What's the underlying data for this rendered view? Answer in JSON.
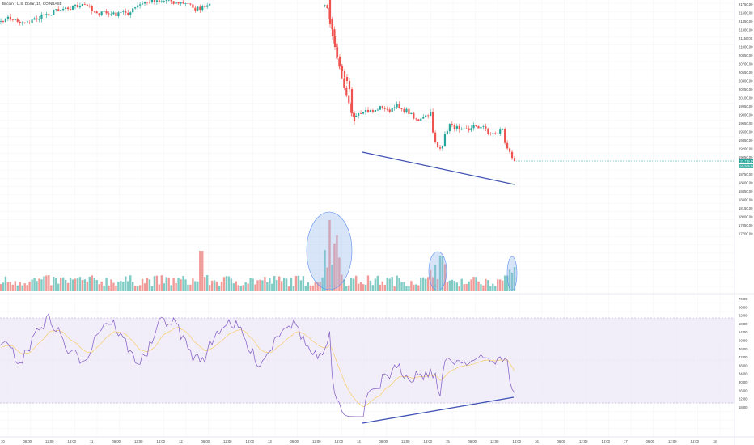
{
  "title": "Bitcoin / U.S. Dollar, 1h, COINBASE",
  "colors": {
    "up": "#26a69a",
    "down": "#ef5350",
    "vol_up": "#80cbc4",
    "vol_down": "#f19b99",
    "rsi_line": "#7e57c2",
    "rsi_ma": "#f9c74f",
    "rsi_band": "#ede7f6",
    "trendline": "#3f51b5",
    "highlight": "#90b4ec",
    "grid": "#f1f3f6"
  },
  "price_axis": [
    "21750.00",
    "21600.00",
    "21450.00",
    "21300.00",
    "21150.00",
    "21000.00",
    "20850.00",
    "20700.00",
    "20550.00",
    "20400.00",
    "20250.00",
    "20100.00",
    "19950.00",
    "19800.00",
    "19650.00",
    "19500.00",
    "19350.00",
    "19200.00",
    "19050.00",
    "18900.00",
    "18750.00",
    "18600.00",
    "18450.00",
    "18300.00",
    "18150.00",
    "18000.00",
    "17850.00",
    "17700.00"
  ],
  "price_badges": [
    "19,719.14",
    "19,708.14",
    "19,634.39"
  ],
  "rsi_axis": [
    "70.00",
    "66.00",
    "62.00",
    "58.00",
    "54.00",
    "50.00",
    "46.00",
    "42.00",
    "38.00",
    "34.00",
    "30.00",
    "26.00",
    "22.00",
    "18.00"
  ],
  "time_axis": [
    "10",
    "06:00",
    "12:00",
    "18:00",
    "11",
    "06:00",
    "12:00",
    "18:00",
    "12",
    "06:00",
    "12:00",
    "18:00",
    "13",
    "06:00",
    "12:00",
    "18:00",
    "14",
    "06:00",
    "12:00",
    "18:00",
    "15",
    "06:00",
    "12:00",
    "18:00",
    "16",
    "06:00",
    "12:00",
    "18:00",
    "17",
    "06:00",
    "12:00",
    "18:00",
    "18"
  ],
  "chart_data": {
    "type": "candlestick",
    "interval": "1h",
    "close_before_drop": 21950,
    "low_after_drop": 19400,
    "last_close": 19719.14,
    "price_divergence_line": {
      "from": 20020,
      "to": 19430
    },
    "rsi_divergence_line": {
      "from": 26,
      "to": 36
    },
    "rsi_levels": [
      70,
      30
    ]
  }
}
